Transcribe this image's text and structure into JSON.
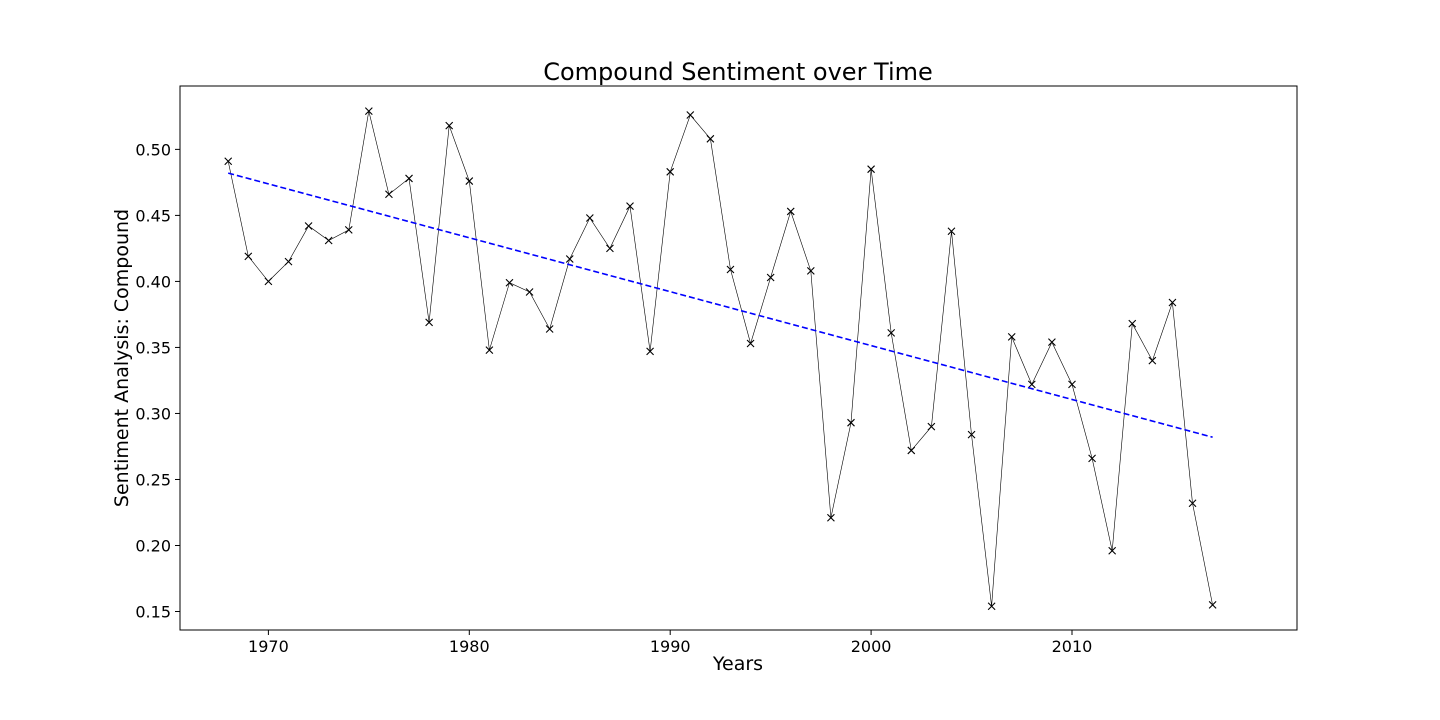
{
  "chart_data": {
    "type": "line",
    "title": "Compound Sentiment over Time",
    "xlabel": "Years",
    "ylabel": "Sentiment Analysis: Compound",
    "xlim": [
      1965.6,
      2021.2
    ],
    "ylim": [
      0.136,
      0.548
    ],
    "xticks": [
      1970,
      1980,
      1990,
      2000,
      2010
    ],
    "yticks": [
      0.15,
      0.2,
      0.25,
      0.3,
      0.35,
      0.4,
      0.45,
      0.5
    ],
    "ytick_labels": [
      "0.15",
      "0.20",
      "0.25",
      "0.30",
      "0.35",
      "0.40",
      "0.45",
      "0.50"
    ],
    "grid": false,
    "legend": "none",
    "series": [
      {
        "style": "solid-line-x-markers",
        "color": "#000000",
        "x": [
          1968,
          1969,
          1970,
          1971,
          1972,
          1973,
          1974,
          1975,
          1976,
          1977,
          1978,
          1979,
          1980,
          1981,
          1982,
          1983,
          1984,
          1985,
          1986,
          1987,
          1988,
          1989,
          1990,
          1991,
          1992,
          1993,
          1994,
          1995,
          1996,
          1997,
          1998,
          1999,
          2000,
          2001,
          2002,
          2003,
          2004,
          2005,
          2006,
          2007,
          2008,
          2009,
          2010,
          2011,
          2012,
          2013,
          2014,
          2015,
          2016,
          2017
        ],
        "y": [
          0.491,
          0.419,
          0.4,
          0.415,
          0.442,
          0.431,
          0.439,
          0.529,
          0.466,
          0.478,
          0.369,
          0.518,
          0.476,
          0.348,
          0.399,
          0.392,
          0.364,
          0.417,
          0.448,
          0.425,
          0.457,
          0.347,
          0.483,
          0.526,
          0.508,
          0.409,
          0.353,
          0.403,
          0.453,
          0.408,
          0.221,
          0.293,
          0.485,
          0.361,
          0.272,
          0.29,
          0.438,
          0.284,
          0.154,
          0.358,
          0.322,
          0.354,
          0.322,
          0.266,
          0.196,
          0.368,
          0.34,
          0.384,
          0.232,
          0.155
        ]
      },
      {
        "style": "dashed-trend-line",
        "color": "#0000ff",
        "x": [
          1968,
          2017
        ],
        "y": [
          0.482,
          0.282
        ]
      }
    ]
  }
}
